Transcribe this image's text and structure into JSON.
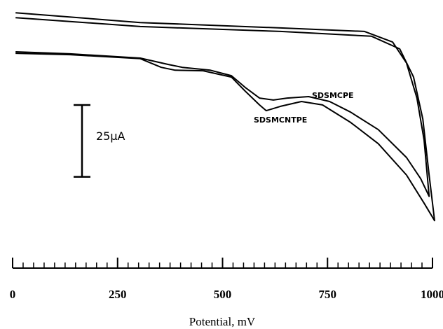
{
  "chart_data": {
    "type": "line",
    "xlabel": "Potential, mV",
    "xlim": [
      0,
      1000
    ],
    "xticks": [
      0,
      250,
      500,
      750,
      1000
    ],
    "xminorticks": [
      0,
      25,
      50,
      75,
      100,
      125,
      150,
      175,
      200,
      225,
      250,
      275,
      300,
      325,
      350,
      375,
      400,
      425,
      450,
      475,
      500,
      525,
      550,
      575,
      600,
      625,
      650,
      675,
      700,
      725,
      750,
      775,
      800,
      825,
      850,
      875,
      900,
      925,
      950,
      975,
      1000
    ],
    "ylim": [
      -78,
      0
    ],
    "scale_bar": {
      "value": 25,
      "label": "25μA"
    },
    "series": [
      {
        "name": "SDSMCPE",
        "color": "#000000",
        "x": [
          7,
          137,
          304,
          371,
          404,
          471,
          521,
          554,
          588,
          621,
          654,
          705,
          755,
          805,
          871,
          938,
          972,
          992,
          980,
          963,
          938,
          905,
          838,
          638,
          304,
          7
        ],
        "values": [
          -15.6,
          -16.3,
          -17.8,
          -20,
          -21,
          -22,
          -23.9,
          -28,
          -31.7,
          -32.4,
          -31.7,
          -31.2,
          -32.9,
          -36.6,
          -42.7,
          -52.4,
          -59.8,
          -65.9,
          -46.3,
          -31.7,
          -19.5,
          -12.2,
          -8.5,
          -7.3,
          -5.4,
          -2
        ]
      },
      {
        "name": "SDSMCNTPE",
        "color": "#000000",
        "x": [
          7,
          137,
          304,
          354,
          387,
          454,
          521,
          554,
          588,
          604,
          638,
          688,
          738,
          805,
          871,
          938,
          980,
          1005,
          992,
          977,
          955,
          922,
          855,
          638,
          304,
          7
        ],
        "values": [
          -16.1,
          -16.6,
          -18,
          -21,
          -22,
          -22.2,
          -24.4,
          -29.3,
          -34.1,
          -36.1,
          -34.6,
          -32.9,
          -34.1,
          -40.2,
          -47.6,
          -58.5,
          -68.3,
          -74.4,
          -58.5,
          -39,
          -24.4,
          -14.6,
          -10.2,
          -8.5,
          -6.8,
          -3.7
        ]
      }
    ]
  }
}
